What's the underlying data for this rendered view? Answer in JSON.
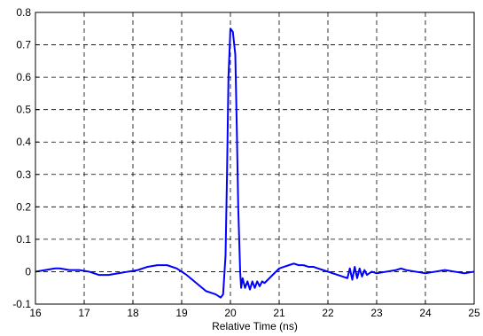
{
  "chart_data": {
    "type": "line",
    "title": "",
    "xlabel": "Relative Time (ns)",
    "ylabel": "",
    "xlim": [
      16,
      25
    ],
    "ylim": [
      -0.1,
      0.8
    ],
    "xticks": [
      16,
      17,
      18,
      19,
      20,
      21,
      22,
      23,
      24,
      25
    ],
    "yticks": [
      -0.1,
      0,
      0.1,
      0.2,
      0.3,
      0.4,
      0.5,
      0.6,
      0.7,
      0.8
    ],
    "xtick_labels": [
      "16",
      "17",
      "18",
      "19",
      "20",
      "21",
      "22",
      "23",
      "24",
      "25"
    ],
    "ytick_labels": [
      "-0.1",
      "0",
      "0.1",
      "0.2",
      "0.3",
      "0.4",
      "0.5",
      "0.6",
      "0.7",
      "0.8"
    ],
    "grid": true,
    "line_color": "#0000FF",
    "series": [
      {
        "x": [
          16.0,
          16.2,
          16.4,
          16.5,
          16.7,
          16.9,
          17.1,
          17.3,
          17.5,
          17.7,
          17.9,
          18.1,
          18.3,
          18.5,
          18.6,
          18.7,
          18.9,
          19.1,
          19.3,
          19.5,
          19.6,
          19.7,
          19.8,
          19.85,
          19.9,
          19.93,
          19.96,
          20.0,
          20.05,
          20.1,
          20.13,
          20.16,
          20.2,
          20.22,
          20.25,
          20.3,
          20.35,
          20.4,
          20.45,
          20.5,
          20.55,
          20.6,
          20.65,
          20.7,
          20.8,
          20.9,
          21.0,
          21.1,
          21.2,
          21.3,
          21.4,
          21.5,
          21.6,
          21.7,
          21.8,
          21.9,
          22.0,
          22.1,
          22.2,
          22.3,
          22.4,
          22.45,
          22.5,
          22.55,
          22.6,
          22.65,
          22.7,
          22.75,
          22.8,
          22.9,
          23.0,
          23.2,
          23.4,
          23.5,
          23.6,
          23.8,
          24.0,
          24.2,
          24.4,
          24.6,
          24.8,
          25.0
        ],
        "y": [
          0.0,
          0.005,
          0.01,
          0.01,
          0.005,
          0.005,
          0.0,
          -0.01,
          -0.01,
          -0.005,
          0.0,
          0.005,
          0.015,
          0.02,
          0.02,
          0.02,
          0.01,
          -0.01,
          -0.035,
          -0.06,
          -0.065,
          -0.07,
          -0.08,
          -0.07,
          0.05,
          0.3,
          0.6,
          0.75,
          0.74,
          0.67,
          0.45,
          0.2,
          0.0,
          -0.05,
          -0.02,
          -0.05,
          -0.03,
          -0.055,
          -0.03,
          -0.05,
          -0.03,
          -0.045,
          -0.03,
          -0.035,
          -0.02,
          -0.005,
          0.01,
          0.015,
          0.02,
          0.025,
          0.02,
          0.02,
          0.015,
          0.015,
          0.01,
          0.005,
          0.0,
          -0.005,
          -0.01,
          -0.015,
          -0.02,
          0.01,
          -0.025,
          0.015,
          -0.02,
          0.01,
          -0.015,
          0.005,
          -0.01,
          0.0,
          -0.005,
          0.0,
          0.005,
          0.01,
          0.005,
          0.0,
          -0.005,
          0.0,
          0.005,
          0.0,
          -0.005,
          0.0
        ]
      }
    ]
  }
}
